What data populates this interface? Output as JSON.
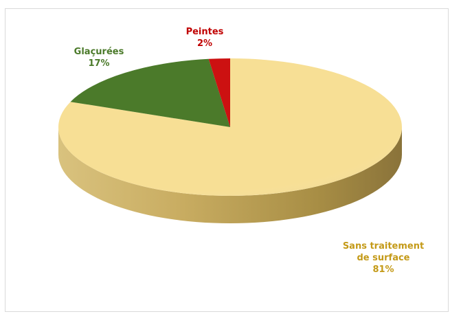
{
  "chart_data": {
    "type": "pie",
    "style": "3d",
    "title": "",
    "slices": [
      {
        "label": "Sans traitement de surface",
        "label_lines": [
          "Sans traitement",
          "de surface"
        ],
        "value": 81,
        "display": "81%",
        "color": "#f7df95",
        "side_color": "#b49b4f",
        "label_color": "#c49a18"
      },
      {
        "label": "Glaçurées",
        "label_lines": [
          "Glaçurées"
        ],
        "value": 17,
        "display": "17%",
        "color": "#4b7a2a",
        "side_color": "#2f5018",
        "label_color": "#4b7a2a"
      },
      {
        "label": "Peintes",
        "label_lines": [
          "Peintes"
        ],
        "value": 2,
        "display": "2%",
        "color": "#cc1111",
        "side_color": "#7a0a0a",
        "label_color": "#c00000"
      }
    ],
    "legend": "none"
  }
}
